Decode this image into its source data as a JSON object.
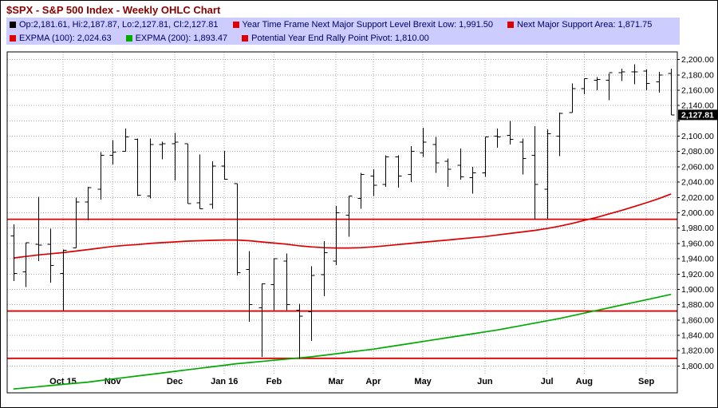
{
  "window": {
    "title": "$SPX - S&P 500 Index - Weekly OHLC Chart"
  },
  "legend": {
    "rows": [
      [
        {
          "swatch": "#000000",
          "label": "Op:2,181.61, Hi:2,187.87, Lo:2,127.81, Cl:2,127.81"
        },
        {
          "swatch": "#dd0000",
          "label": "Year Time Frame Next Major Support Level Brexit Low: 1,991.50"
        },
        {
          "swatch": "#dd0000",
          "label": "Next Major Support Area: 1,871.75"
        }
      ],
      [
        {
          "swatch": "#dd0000",
          "label": "EXPMA (100): 2,024.63"
        },
        {
          "swatch": "#00aa00",
          "label": "EXPMA (200): 1,893.47"
        },
        {
          "swatch": "#dd0000",
          "label": "Potential Year End Rally Point Pivot: 1,810.00"
        }
      ]
    ]
  },
  "chart_data": {
    "type": "ohlc",
    "title": "$SPX - S&P 500 Index - Weekly OHLC Chart",
    "grid": true,
    "legend_position": "top",
    "ylim": [
      1765,
      2210
    ],
    "y_ticks": [
      2200,
      2180,
      2160,
      2140,
      2120,
      2100,
      2080,
      2060,
      2040,
      2020,
      2000,
      1980,
      1960,
      1940,
      1920,
      1900,
      1880,
      1860,
      1840,
      1820,
      1800
    ],
    "x_labels": [
      {
        "label": "Oct 15",
        "index": 4
      },
      {
        "label": "Nov",
        "index": 8
      },
      {
        "label": "Dec",
        "index": 13
      },
      {
        "label": "Jan 16",
        "index": 17
      },
      {
        "label": "Feb",
        "index": 21
      },
      {
        "label": "Mar",
        "index": 26
      },
      {
        "label": "Apr",
        "index": 29
      },
      {
        "label": "May",
        "index": 33
      },
      {
        "label": "Jun",
        "index": 38
      },
      {
        "label": "Jul",
        "index": 43
      },
      {
        "label": "Aug",
        "index": 46
      },
      {
        "label": "Sep",
        "index": 51
      }
    ],
    "last_price": {
      "value": 2127.81,
      "label": "2,127.81"
    },
    "ohlc_summary": {
      "open": 2181.61,
      "high": 2187.87,
      "low": 2127.81,
      "close": 2127.81
    },
    "support_lines": [
      {
        "label": "Year Time Frame Next Major Support Level Brexit Low",
        "value": 1991.5,
        "color": "#dd0000"
      },
      {
        "label": "Next Major Support Area",
        "value": 1871.75,
        "color": "#dd0000"
      },
      {
        "label": "Potential Year End Rally Point Pivot",
        "value": 1810.0,
        "color": "#dd0000"
      }
    ],
    "series": [
      {
        "name": "EXPMA (100)",
        "color": "#dd0000",
        "last": 2024.63,
        "values": [
          1941,
          1943,
          1945,
          1946.5,
          1948,
          1950,
          1952,
          1954,
          1956,
          1957.5,
          1958.5,
          1960,
          1961,
          1962,
          1963,
          1963.5,
          1964,
          1964.5,
          1964.5,
          1963.5,
          1962,
          1960.5,
          1959,
          1957,
          1955.5,
          1954.5,
          1954,
          1954,
          1954.5,
          1955.5,
          1957,
          1958.5,
          1960,
          1961.5,
          1963,
          1964.5,
          1966,
          1967.5,
          1969,
          1971,
          1973,
          1975,
          1977,
          1979.5,
          1982.5,
          1986,
          1990,
          1994,
          1998.5,
          2003,
          2008,
          2013,
          2018.5,
          2024.63
        ]
      },
      {
        "name": "EXPMA (200)",
        "color": "#00aa00",
        "last": 1893.47,
        "values": [
          1770,
          1771.5,
          1773,
          1774.5,
          1776,
          1777.5,
          1779,
          1781,
          1783,
          1785,
          1787,
          1789,
          1791,
          1793,
          1795,
          1797,
          1799,
          1801,
          1803,
          1804.5,
          1806,
          1807.5,
          1809,
          1810.5,
          1812,
          1814,
          1816,
          1818,
          1820,
          1822,
          1824.5,
          1827,
          1829.5,
          1832,
          1834.5,
          1837,
          1839.5,
          1842,
          1844.5,
          1847,
          1850,
          1853,
          1856,
          1859,
          1862,
          1865.5,
          1869,
          1872.5,
          1876,
          1879.5,
          1883,
          1886.5,
          1890,
          1893.47
        ]
      }
    ],
    "bars": [
      [
        1970,
        1985,
        1911,
        1921
      ],
      [
        1923,
        1961,
        1903,
        1961
      ],
      [
        1959,
        2021,
        1937,
        1958
      ],
      [
        1959,
        1979,
        1909,
        1931
      ],
      [
        1921,
        1952,
        1872,
        1951
      ],
      [
        1954,
        2020,
        1954,
        2014
      ],
      [
        2014,
        2034,
        1990,
        2033
      ],
      [
        2031,
        2079,
        2017,
        2075
      ],
      [
        2075,
        2095,
        2063,
        2079
      ],
      [
        2080,
        2110,
        2080,
        2099
      ],
      [
        2096,
        2097,
        2022,
        2023
      ],
      [
        2022,
        2097,
        2019,
        2089
      ],
      [
        2089,
        2093,
        2070,
        2090
      ],
      [
        2090,
        2104,
        2042,
        2092
      ],
      [
        2090,
        2090,
        2012,
        2012
      ],
      [
        2013,
        2076,
        2005,
        2005
      ],
      [
        2011,
        2067,
        2005,
        2061
      ],
      [
        2061,
        2081,
        2043,
        2044
      ],
      [
        2038,
        2038,
        1918,
        1922
      ],
      [
        1926,
        1950,
        1858,
        1880
      ],
      [
        1876,
        1908,
        1812,
        1907
      ],
      [
        1906,
        1940,
        1873,
        1940
      ],
      [
        1937,
        1947,
        1873,
        1880
      ],
      [
        1873,
        1881,
        1810,
        1865
      ],
      [
        1871,
        1930,
        1833,
        1918
      ],
      [
        1919,
        1963,
        1891,
        1948
      ],
      [
        1937,
        2009,
        1932,
        2000
      ],
      [
        1997,
        2022,
        1969,
        2022
      ],
      [
        2019,
        2052,
        2005,
        2050
      ],
      [
        2048,
        2057,
        2022,
        2036
      ],
      [
        2037,
        2075,
        2034,
        2073
      ],
      [
        2073,
        2075,
        2033,
        2048
      ],
      [
        2050,
        2087,
        2040,
        2080
      ],
      [
        2078,
        2111,
        2073,
        2092
      ],
      [
        2089,
        2099,
        2052,
        2065
      ],
      [
        2067,
        2071,
        2034,
        2057
      ],
      [
        2062,
        2084,
        2043,
        2047
      ],
      [
        2046,
        2060,
        2025,
        2052
      ],
      [
        2052,
        2099,
        2047,
        2099
      ],
      [
        2100,
        2110,
        2085,
        2099
      ],
      [
        2101,
        2120,
        2089,
        2096
      ],
      [
        2092,
        2097,
        2050,
        2071
      ],
      [
        2075,
        2113,
        1991,
        2037
      ],
      [
        2031,
        2109,
        1992,
        2103
      ],
      [
        2100,
        2131,
        2074,
        2130
      ],
      [
        2131,
        2169,
        2131,
        2162
      ],
      [
        2162,
        2175,
        2155,
        2175
      ],
      [
        2173,
        2177,
        2160,
        2174
      ],
      [
        2173,
        2182,
        2147,
        2183
      ],
      [
        2183,
        2188,
        2172,
        2184
      ],
      [
        2184,
        2194,
        2168,
        2184
      ],
      [
        2185,
        2187,
        2160,
        2169
      ],
      [
        2171,
        2184,
        2157,
        2180
      ],
      [
        2181.61,
        2187.87,
        2127.81,
        2127.81
      ]
    ],
    "colors": {
      "bar": "#000000",
      "grid": "#aaaaaa",
      "background": "#ffffff",
      "legend_bg": "#ccccff"
    }
  }
}
